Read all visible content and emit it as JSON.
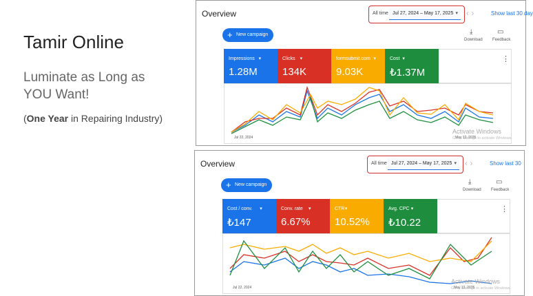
{
  "slide": {
    "title": "Tamir Online",
    "subtitle_lines": [
      "Luminate as Long as",
      "YOU Want!"
    ],
    "note_parts": [
      "(",
      "One Year",
      " in Repairing Industry)"
    ]
  },
  "panels": [
    {
      "title": "Overview",
      "range_label": "All time",
      "date_range": "Jul 27, 2024 – May 17, 2025",
      "show_last": "Show last 30 day",
      "new_campaign": "New campaign",
      "download": "Download",
      "feedback": "Feedback",
      "metrics": [
        {
          "name": "Impressions",
          "value": "1.28M"
        },
        {
          "name": "Clicks",
          "value": "134K"
        },
        {
          "name": "formsubmit.com",
          "value": "9.03K"
        },
        {
          "name": "Cost",
          "value": "₺1.37M"
        }
      ],
      "x_start": "Jul 22, 2024",
      "x_end": "May 12, 2025",
      "watermark": "Activate Windows",
      "watermark_sub": "Go to Settings to activate Windows."
    },
    {
      "title": "Overview",
      "range_label": "All time",
      "date_range": "Jul 27, 2024 – May 17, 2025",
      "show_last": "Show last 30",
      "new_campaign": "New campaign",
      "download": "Download",
      "feedback": "Feedback",
      "metrics": [
        {
          "name": "Cost / conv.",
          "value": "₺147"
        },
        {
          "name": "Conv. rate",
          "value": "6.67%"
        },
        {
          "name": "CTR",
          "value": "10.52%"
        },
        {
          "name": "Avg. CPC",
          "value": "₺10.22"
        }
      ],
      "x_start": "Jul 22, 2024",
      "x_end": "May 12, 2025",
      "watermark": "Activate Windows",
      "watermark_sub": "Go to Settings to activate Windows."
    }
  ]
}
